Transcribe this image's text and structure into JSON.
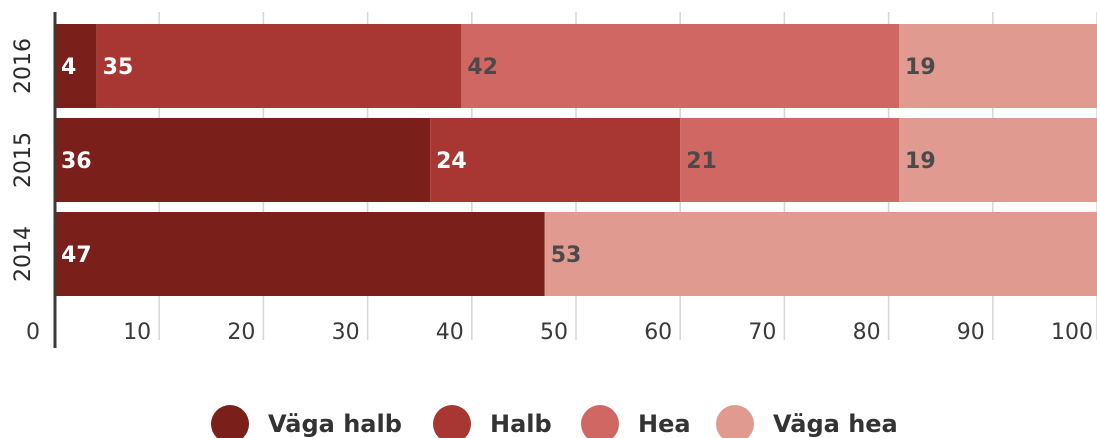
{
  "chart_data": {
    "type": "bar",
    "orientation": "horizontal",
    "stacked": true,
    "categories": [
      "2016",
      "2015",
      "2014"
    ],
    "series": [
      {
        "name": "Väga halb",
        "values": [
          4,
          36,
          47
        ],
        "color": "#7b1f1a"
      },
      {
        "name": "Halb",
        "values": [
          35,
          24,
          0
        ],
        "color": "#a83734"
      },
      {
        "name": "Hea",
        "values": [
          42,
          21,
          0
        ],
        "color": "#d16762"
      },
      {
        "name": "Väga hea",
        "values": [
          19,
          19,
          53
        ],
        "color": "#e09a8f"
      }
    ],
    "xlim": [
      0,
      100
    ],
    "xticks": [
      "0",
      "10",
      "20",
      "30",
      "40",
      "50",
      "60",
      "70",
      "80",
      "90",
      "100"
    ],
    "grid": true,
    "legend": "bottom-center"
  }
}
